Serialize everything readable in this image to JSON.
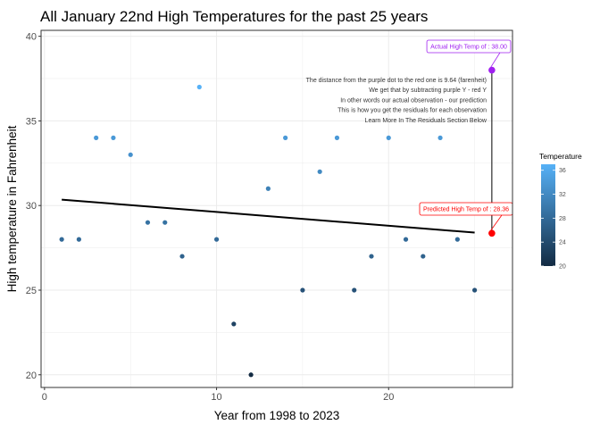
{
  "colors": {
    "point_low": "#132B43",
    "point_high": "#56B1F7",
    "trend_line": "#000000",
    "actual_marker": "#A020F0",
    "predicted_marker": "#FF0000",
    "grid": "#EBEBEB",
    "panel_border": "#333333"
  },
  "chart_data": {
    "type": "scatter",
    "title": "All January 22nd High Temperatures for the past 25 years",
    "xlabel": "Year from 1998 to 2023",
    "ylabel": "High temperature in Fahrenheit",
    "xlim": [
      -0.2,
      27.2
    ],
    "ylim": [
      19.25,
      40.35
    ],
    "x_ticks": [
      0,
      10,
      20
    ],
    "x_tick_labels": [
      "0",
      "10",
      "20"
    ],
    "y_ticks": [
      20,
      25,
      30,
      35,
      40
    ],
    "y_tick_labels": [
      "20",
      "25",
      "30",
      "35",
      "40"
    ],
    "grid": true,
    "points": [
      {
        "x": 1,
        "y": 28
      },
      {
        "x": 2,
        "y": 28
      },
      {
        "x": 3,
        "y": 34
      },
      {
        "x": 4,
        "y": 34
      },
      {
        "x": 5,
        "y": 33
      },
      {
        "x": 6,
        "y": 29
      },
      {
        "x": 7,
        "y": 29
      },
      {
        "x": 8,
        "y": 27
      },
      {
        "x": 9,
        "y": 37
      },
      {
        "x": 10,
        "y": 28
      },
      {
        "x": 11,
        "y": 23
      },
      {
        "x": 12,
        "y": 20
      },
      {
        "x": 13,
        "y": 31
      },
      {
        "x": 14,
        "y": 34
      },
      {
        "x": 15,
        "y": 25
      },
      {
        "x": 16,
        "y": 32
      },
      {
        "x": 17,
        "y": 34
      },
      {
        "x": 18,
        "y": 25
      },
      {
        "x": 19,
        "y": 27
      },
      {
        "x": 20,
        "y": 34
      },
      {
        "x": 21,
        "y": 28
      },
      {
        "x": 22,
        "y": 27
      },
      {
        "x": 23,
        "y": 34
      },
      {
        "x": 24,
        "y": 28
      },
      {
        "x": 25,
        "y": 25
      }
    ],
    "trend_line": {
      "x": [
        1,
        25
      ],
      "y": [
        30.35,
        28.4
      ]
    },
    "highlight": {
      "x": 26,
      "actual_y": 38,
      "predicted_y": 28.36,
      "actual_label": "Actual High Temp of : 38.00",
      "predicted_label": "Predicted High Temp of : 28.36"
    },
    "annotation_lines": [
      "The distance from the purple dot to the red one is 9.64 (farenheit)",
      "We get that by subtracting purple Y - red Y",
      "In other words our actual observation - our prediction",
      "This is how you get the residuals for each observation",
      "Learn More In The Residuals Section Below"
    ],
    "legend": {
      "title": "Temperature",
      "position": "right",
      "min": 20,
      "max": 37,
      "ticks": [
        20,
        24,
        28,
        32,
        36
      ],
      "tick_labels": [
        "20",
        "24",
        "28",
        "32",
        "36"
      ]
    }
  }
}
